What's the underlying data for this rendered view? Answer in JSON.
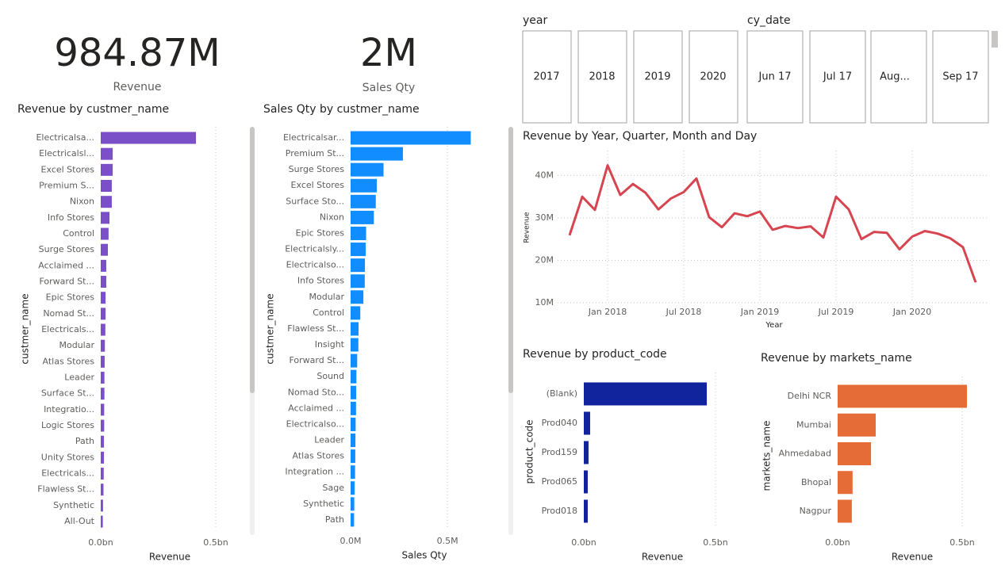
{
  "cards": [
    {
      "value": "984.87M",
      "label": "Revenue"
    },
    {
      "value": "2M",
      "label": "Sales Qty"
    }
  ],
  "slicers": [
    {
      "title": "year",
      "items": [
        "2017",
        "2018",
        "2019",
        "2020"
      ]
    },
    {
      "title": "cy_date",
      "items": [
        "Jun 17",
        "Jul 17",
        "Aug...",
        "Sep 17"
      ]
    }
  ],
  "chart_data": [
    {
      "type": "barh",
      "title": "Revenue by custmer_name",
      "x_label": "Revenue",
      "y_label": "custmer_name",
      "color": "#7b4fc7",
      "categories": [
        "Electricalsa...",
        "Electricalsl...",
        "Excel Stores",
        "Premium S...",
        "Nixon",
        "Info Stores",
        "Control",
        "Surge Stores",
        "Acclaimed ...",
        "Forward St...",
        "Epic Stores",
        "Nomad St...",
        "Electricals...",
        "Modular",
        "Atlas Stores",
        "Leader",
        "Surface St...",
        "Integratio...",
        "Logic Stores",
        "Path",
        "Unity Stores",
        "Electricals...",
        "Flawless St...",
        "Synthetic",
        "All-Out"
      ],
      "values": [
        0.414,
        0.052,
        0.052,
        0.048,
        0.048,
        0.038,
        0.034,
        0.031,
        0.024,
        0.024,
        0.021,
        0.021,
        0.02,
        0.018,
        0.017,
        0.016,
        0.016,
        0.015,
        0.015,
        0.014,
        0.014,
        0.013,
        0.012,
        0.01,
        0.009
      ],
      "xlim": [
        0,
        0.55
      ],
      "xticks": [
        {
          "value": 0,
          "label": "0.0bn"
        },
        {
          "value": 0.5,
          "label": "0.5bn"
        }
      ],
      "grid": true
    },
    {
      "type": "barh",
      "title": "Sales Qty by custmer_name",
      "x_label": "Sales Qty",
      "y_label": "custmer_name",
      "color": "#118dff",
      "categories": [
        "Electricalsar...",
        "Premium St...",
        "Surge Stores",
        "Excel Stores",
        "Surface Sto...",
        "Nixon",
        "Epic Stores",
        "Electricalsly...",
        "Electricalso...",
        "Info Stores",
        "Modular",
        "Control",
        "Flawless St...",
        "Insight",
        "Forward St...",
        "Sound",
        "Nomad Sto...",
        "Acclaimed ...",
        "Electricalso...",
        "Leader",
        "Atlas Stores",
        "Integration ...",
        "Sage",
        "Synthetic",
        "Path"
      ],
      "values": [
        0.62,
        0.27,
        0.17,
        0.135,
        0.13,
        0.12,
        0.08,
        0.078,
        0.074,
        0.073,
        0.066,
        0.05,
        0.041,
        0.04,
        0.034,
        0.03,
        0.029,
        0.028,
        0.026,
        0.025,
        0.024,
        0.023,
        0.021,
        0.019,
        0.018
      ],
      "xlim": [
        0,
        0.7
      ],
      "xticks": [
        {
          "value": 0,
          "label": "0.0M"
        },
        {
          "value": 0.5,
          "label": "0.5M"
        }
      ],
      "grid": true
    },
    {
      "type": "line",
      "title": "Revenue by Year, Quarter, Month and Day",
      "x_label": "Year",
      "y_label": "Revenue",
      "color": "#d64550",
      "x": [
        "Oct 2017",
        "Nov 2017",
        "Dec 2017",
        "Jan 2018",
        "Feb 2018",
        "Mar 2018",
        "Apr 2018",
        "May 2018",
        "Jun 2018",
        "Jul 2018",
        "Aug 2018",
        "Sep 2018",
        "Oct 2018",
        "Nov 2018",
        "Dec 2018",
        "Jan 2019",
        "Feb 2019",
        "Mar 2019",
        "Apr 2019",
        "May 2019",
        "Jun 2019",
        "Jul 2019",
        "Aug 2019",
        "Sep 2019",
        "Oct 2019",
        "Nov 2019",
        "Dec 2019",
        "Jan 2020",
        "Feb 2020",
        "Mar 2020",
        "Apr 2020",
        "May 2020",
        "Jun 2020"
      ],
      "values": [
        25.9,
        35,
        31.9,
        42.4,
        35.4,
        38,
        35.9,
        32,
        34.6,
        36.1,
        39.3,
        30.2,
        27.8,
        31.1,
        30.4,
        31.5,
        27.2,
        28.1,
        27.6,
        28,
        25.4,
        35,
        32,
        25,
        26.7,
        26.5,
        22.6,
        25.6,
        26.9,
        26.3,
        25.2,
        23.1,
        14.8
      ],
      "ylim": [
        10,
        44
      ],
      "yticks": [
        {
          "value": 10,
          "label": "10M"
        },
        {
          "value": 20,
          "label": "20M"
        },
        {
          "value": 30,
          "label": "30M"
        },
        {
          "value": 40,
          "label": "40M"
        }
      ],
      "xticks": [
        "Jan 2018",
        "Jul 2018",
        "Jan 2019",
        "Jul 2019",
        "Jan 2020"
      ],
      "grid": true
    },
    {
      "type": "barh",
      "title": "Revenue by product_code",
      "x_label": "Revenue",
      "y_label": "product_code",
      "color": "#12239e",
      "categories": [
        "(Blank)",
        "Prod040",
        "Prod159",
        "Prod065",
        "Prod018"
      ],
      "values": [
        0.467,
        0.024,
        0.018,
        0.015,
        0.015
      ],
      "xlim": [
        0,
        0.55
      ],
      "xticks": [
        {
          "value": 0,
          "label": "0.0bn"
        },
        {
          "value": 0.5,
          "label": "0.5bn"
        }
      ],
      "grid": true
    },
    {
      "type": "barh",
      "title": "Revenue by markets_name",
      "x_label": "Revenue",
      "y_label": "markets_name",
      "color": "#e66c37",
      "categories": [
        "Delhi NCR",
        "Mumbai",
        "Ahmedabad",
        "Bhopal",
        "Nagpur"
      ],
      "values": [
        0.519,
        0.153,
        0.134,
        0.06,
        0.057
      ],
      "xlim": [
        0,
        0.55
      ],
      "xticks": [
        {
          "value": 0,
          "label": "0.0bn"
        },
        {
          "value": 0.5,
          "label": "0.5bn"
        }
      ],
      "grid": true
    }
  ]
}
